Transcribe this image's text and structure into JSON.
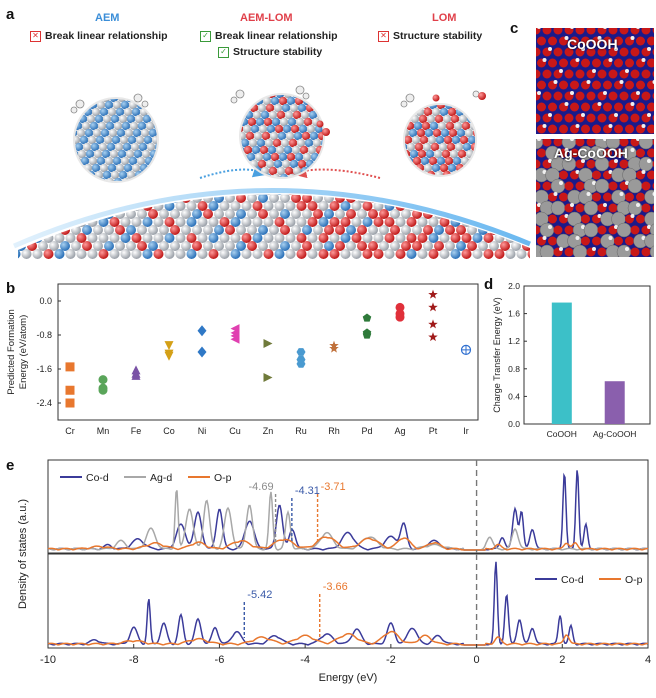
{
  "panel_labels": {
    "a": "a",
    "b": "b",
    "c": "c",
    "d": "d",
    "e": "e"
  },
  "panel_a": {
    "aem": {
      "title": "AEM",
      "items": [
        {
          "text": "Break linear relationship",
          "status": "cross"
        }
      ]
    },
    "aem_lom": {
      "title": "AEM-LOM",
      "items": [
        {
          "text": "Break linear relationship",
          "status": "check"
        },
        {
          "text": "Structure stability",
          "status": "check"
        }
      ]
    },
    "lom": {
      "title": "LOM",
      "items": [
        {
          "text": "Structure stability",
          "status": "cross"
        }
      ]
    },
    "colors": {
      "aem": "#3b8ed8",
      "aem_lom": "#e0404a",
      "lom": "#e0404a"
    }
  },
  "panel_c": {
    "top_label": "CoOOH",
    "bottom_label": "Ag-CoOOH"
  },
  "chart_data": [
    {
      "id": "b",
      "type": "scatter",
      "ylabel": "Predicted Formation Energy (eV/atom)",
      "ylabel_lines": [
        "Predicted Formation",
        "Energy (eV/atom)"
      ],
      "ylim": [
        -2.8,
        0.4
      ],
      "yticks": [
        "0.0",
        "-0.8",
        "-1.6",
        "-2.4"
      ],
      "ytick_values": [
        0.0,
        -0.8,
        -1.6,
        -2.4
      ],
      "categories": [
        "Cr",
        "Mn",
        "Fe",
        "Co",
        "Ni",
        "Cu",
        "Zn",
        "Ru",
        "Rh",
        "Pd",
        "Ag",
        "Pt",
        "Ir"
      ],
      "series": [
        {
          "name": "Cr",
          "color": "#e8772e",
          "marker": "square",
          "values": [
            -1.55,
            -2.1,
            -2.4
          ]
        },
        {
          "name": "Mn",
          "color": "#5aa55a",
          "marker": "circle",
          "values": [
            -1.85,
            -2.05,
            -2.1
          ]
        },
        {
          "name": "Fe",
          "color": "#7a52a6",
          "marker": "triangle-up",
          "values": [
            -1.62,
            -1.7,
            -1.75
          ]
        },
        {
          "name": "Co",
          "color": "#d4a017",
          "marker": "triangle-down",
          "values": [
            -1.05,
            -1.25,
            -1.3
          ]
        },
        {
          "name": "Ni",
          "color": "#2f78c6",
          "marker": "diamond",
          "values": [
            -0.7,
            -1.2
          ]
        },
        {
          "name": "Cu",
          "color": "#e040b0",
          "marker": "triangle-left",
          "values": [
            -0.65,
            -0.75,
            -0.82,
            -0.9
          ]
        },
        {
          "name": "Zn",
          "color": "#6f7a3a",
          "marker": "triangle-right",
          "values": [
            -1.0,
            -1.8
          ]
        },
        {
          "name": "Ru",
          "color": "#4a9ad0",
          "marker": "hexagon",
          "values": [
            -1.2,
            -1.38,
            -1.48
          ]
        },
        {
          "name": "Rh",
          "color": "#c0703a",
          "marker": "star",
          "values": [
            -1.05,
            -1.12
          ]
        },
        {
          "name": "Pd",
          "color": "#2e7a3a",
          "marker": "pentagon",
          "values": [
            -0.4,
            -0.75,
            -0.8
          ]
        },
        {
          "name": "Ag",
          "color": "#e0303a",
          "marker": "circle",
          "values": [
            -0.15,
            -0.3,
            -0.38
          ]
        },
        {
          "name": "Pt",
          "color": "#a01a1a",
          "marker": "star",
          "values": [
            0.15,
            -0.15,
            -0.55,
            -0.85
          ]
        },
        {
          "name": "Ir",
          "color": "#2f6fd0",
          "marker": "circle-plus",
          "values": [
            -1.15
          ]
        }
      ]
    },
    {
      "id": "d",
      "type": "bar",
      "categories": [
        "CoOOH",
        "Ag-CoOOH"
      ],
      "values": [
        1.76,
        0.62
      ],
      "colors": [
        "#3cc0c8",
        "#8a5fad"
      ],
      "ylabel": "Charge Transfer Energy (eV)",
      "ylim": [
        0,
        2.0
      ],
      "yticks": [
        "2.0",
        "1.6",
        "1.2",
        "0.8",
        "0.4",
        "0.0"
      ],
      "ytick_values": [
        2.0,
        1.6,
        1.2,
        0.8,
        0.4,
        0.0
      ]
    },
    {
      "id": "e",
      "type": "line",
      "xlabel": "Energy (eV)",
      "ylabel": "Density of states (a.u.)",
      "xlim": [
        -10,
        4
      ],
      "xticks": [
        "-10",
        "-8",
        "-6",
        "-4",
        "-2",
        "0",
        "2",
        "4"
      ],
      "xtick_values": [
        -10,
        -8,
        -6,
        -4,
        -2,
        0,
        2,
        4
      ],
      "fermi_level": 0,
      "subplots": [
        {
          "legend": [
            "Co-d",
            "Ag-d",
            "O-p"
          ],
          "annotations": [
            {
              "x": -4.69,
              "text": "-4.69",
              "color": "#8c8c8c"
            },
            {
              "x": -4.31,
              "text": "-4.31",
              "color": "#3a5aa8"
            },
            {
              "x": -3.71,
              "text": "-3.71",
              "color": "#e8772e"
            }
          ],
          "series": [
            {
              "name": "Co-d",
              "color": "#3b3b9a",
              "peaks": [
                [
                  -8.6,
                  0.05,
                  0.12
                ],
                [
                  -7.9,
                  0.12,
                  0.2
                ],
                [
                  -6.9,
                  0.3,
                  0.15
                ],
                [
                  -6.5,
                  0.45,
                  0.12
                ],
                [
                  -6.0,
                  0.5,
                  0.1
                ],
                [
                  -5.3,
                  0.35,
                  0.15
                ],
                [
                  -4.6,
                  0.55,
                  0.1
                ],
                [
                  -4.3,
                  0.25,
                  0.1
                ],
                [
                  -3.0,
                  0.2,
                  0.2
                ],
                [
                  -2.0,
                  0.15,
                  0.2
                ],
                [
                  -1.7,
                  0.3,
                  0.1
                ],
                [
                  -1.0,
                  0.1,
                  0.2
                ],
                [
                  0.6,
                  0.15,
                  0.08
                ],
                [
                  0.9,
                  0.5,
                  0.08
                ],
                [
                  1.05,
                  0.45,
                  0.06
                ],
                [
                  1.3,
                  0.25,
                  0.08
                ],
                [
                  2.05,
                  0.95,
                  0.05
                ],
                [
                  2.35,
                  1.0,
                  0.05
                ],
                [
                  2.55,
                  0.3,
                  0.06
                ]
              ]
            },
            {
              "name": "Ag-d",
              "color": "#a8a8a8",
              "peaks": [
                [
                  -8.3,
                  0.1,
                  0.15
                ],
                [
                  -7.6,
                  0.25,
                  0.15
                ],
                [
                  -7.0,
                  0.75,
                  0.05
                ],
                [
                  -6.7,
                  0.5,
                  0.12
                ],
                [
                  -6.3,
                  0.6,
                  0.1
                ],
                [
                  -5.8,
                  0.5,
                  0.12
                ],
                [
                  -5.3,
                  0.55,
                  0.1
                ],
                [
                  -4.8,
                  0.7,
                  0.06
                ],
                [
                  -4.4,
                  0.45,
                  0.08
                ],
                [
                  -3.5,
                  0.2,
                  0.2
                ],
                [
                  -2.5,
                  0.15,
                  0.25
                ],
                [
                  -1.0,
                  0.05,
                  0.3
                ],
                [
                  0.3,
                  0.15,
                  0.1
                ],
                [
                  0.9,
                  0.25,
                  0.1
                ]
              ]
            },
            {
              "name": "O-p",
              "color": "#e8772e",
              "peaks": [
                [
                  -8.8,
                  0.03,
                  0.3
                ],
                [
                  -7.5,
                  0.07,
                  0.3
                ],
                [
                  -6.5,
                  0.08,
                  0.25
                ],
                [
                  -5.5,
                  0.1,
                  0.3
                ],
                [
                  -4.5,
                  0.12,
                  0.3
                ],
                [
                  -3.5,
                  0.15,
                  0.3
                ],
                [
                  -2.5,
                  0.13,
                  0.3
                ],
                [
                  -1.7,
                  0.14,
                  0.2
                ],
                [
                  -1.0,
                  0.08,
                  0.2
                ],
                [
                  0.5,
                  0.05,
                  0.1
                ],
                [
                  2.1,
                  0.08,
                  0.08
                ],
                [
                  2.3,
                  0.07,
                  0.08
                ]
              ]
            }
          ]
        },
        {
          "legend": [
            "Co-d",
            "O-p"
          ],
          "annotations": [
            {
              "x": -5.42,
              "text": "-5.42",
              "color": "#3a5aa8"
            },
            {
              "x": -3.66,
              "text": "-3.66",
              "color": "#e8772e"
            }
          ],
          "series": [
            {
              "name": "Co-d",
              "color": "#3b3b9a",
              "peaks": [
                [
                  -8.9,
                  0.05,
                  0.15
                ],
                [
                  -8.0,
                  0.2,
                  0.12
                ],
                [
                  -7.65,
                  0.55,
                  0.05
                ],
                [
                  -7.3,
                  0.25,
                  0.1
                ],
                [
                  -6.9,
                  0.35,
                  0.08
                ],
                [
                  -6.5,
                  0.3,
                  0.1
                ],
                [
                  -6.1,
                  0.2,
                  0.1
                ],
                [
                  -5.6,
                  0.15,
                  0.15
                ],
                [
                  -4.7,
                  0.1,
                  0.2
                ],
                [
                  -3.5,
                  0.12,
                  0.2
                ],
                [
                  -2.8,
                  0.18,
                  0.15
                ],
                [
                  -2.0,
                  0.25,
                  0.12
                ],
                [
                  -1.5,
                  0.2,
                  0.15
                ],
                [
                  -0.9,
                  0.1,
                  0.15
                ],
                [
                  0.45,
                  1.0,
                  0.05
                ],
                [
                  0.7,
                  0.6,
                  0.06
                ],
                [
                  1.0,
                  0.3,
                  0.08
                ],
                [
                  1.3,
                  0.2,
                  0.08
                ],
                [
                  1.95,
                  0.35,
                  0.06
                ],
                [
                  2.2,
                  0.22,
                  0.06
                ]
              ]
            },
            {
              "name": "O-p",
              "color": "#e8772e",
              "peaks": [
                [
                  -8.0,
                  0.04,
                  0.3
                ],
                [
                  -6.5,
                  0.06,
                  0.3
                ],
                [
                  -5.0,
                  0.08,
                  0.3
                ],
                [
                  -4.0,
                  0.1,
                  0.3
                ],
                [
                  -3.0,
                  0.12,
                  0.3
                ],
                [
                  -2.0,
                  0.15,
                  0.25
                ],
                [
                  -1.2,
                  0.1,
                  0.2
                ],
                [
                  0.5,
                  0.08,
                  0.1
                ],
                [
                  2.1,
                  0.12,
                  0.08
                ]
              ]
            }
          ]
        }
      ]
    }
  ]
}
